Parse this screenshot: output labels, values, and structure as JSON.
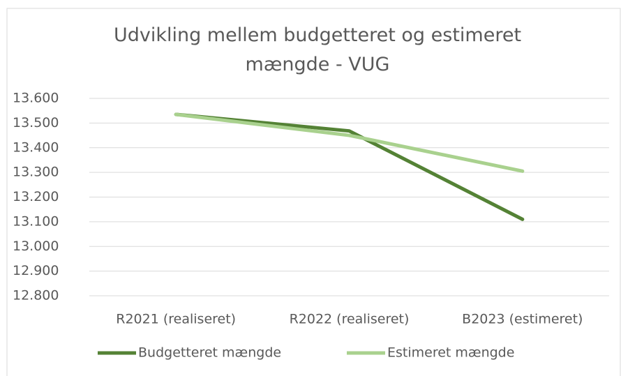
{
  "chart_data": {
    "type": "line",
    "title": "Udvikling mellem budgetteret og estimeret mængde - VUG",
    "categories": [
      "R2021 (realiseret)",
      "R2022 (realiseret)",
      "B2023 (estimeret)"
    ],
    "series": [
      {
        "name": "Budgetteret mængde",
        "color": "#548235",
        "values": [
          13535,
          13468,
          13110
        ]
      },
      {
        "name": "Estimeret mængde",
        "color": "#a9d18e",
        "values": [
          13535,
          13450,
          13305
        ]
      }
    ],
    "ylim": [
      12800,
      13600
    ],
    "yticks": [
      {
        "value": 12800,
        "label": "12.800"
      },
      {
        "value": 12900,
        "label": "12.900"
      },
      {
        "value": 13000,
        "label": "13.000"
      },
      {
        "value": 13100,
        "label": "13.100"
      },
      {
        "value": 13200,
        "label": "13.200"
      },
      {
        "value": 13300,
        "label": "13.300"
      },
      {
        "value": 13400,
        "label": "13.400"
      },
      {
        "value": 13500,
        "label": "13.500"
      },
      {
        "value": 13600,
        "label": "13.600"
      }
    ],
    "grid": true,
    "legend": "bottom"
  }
}
